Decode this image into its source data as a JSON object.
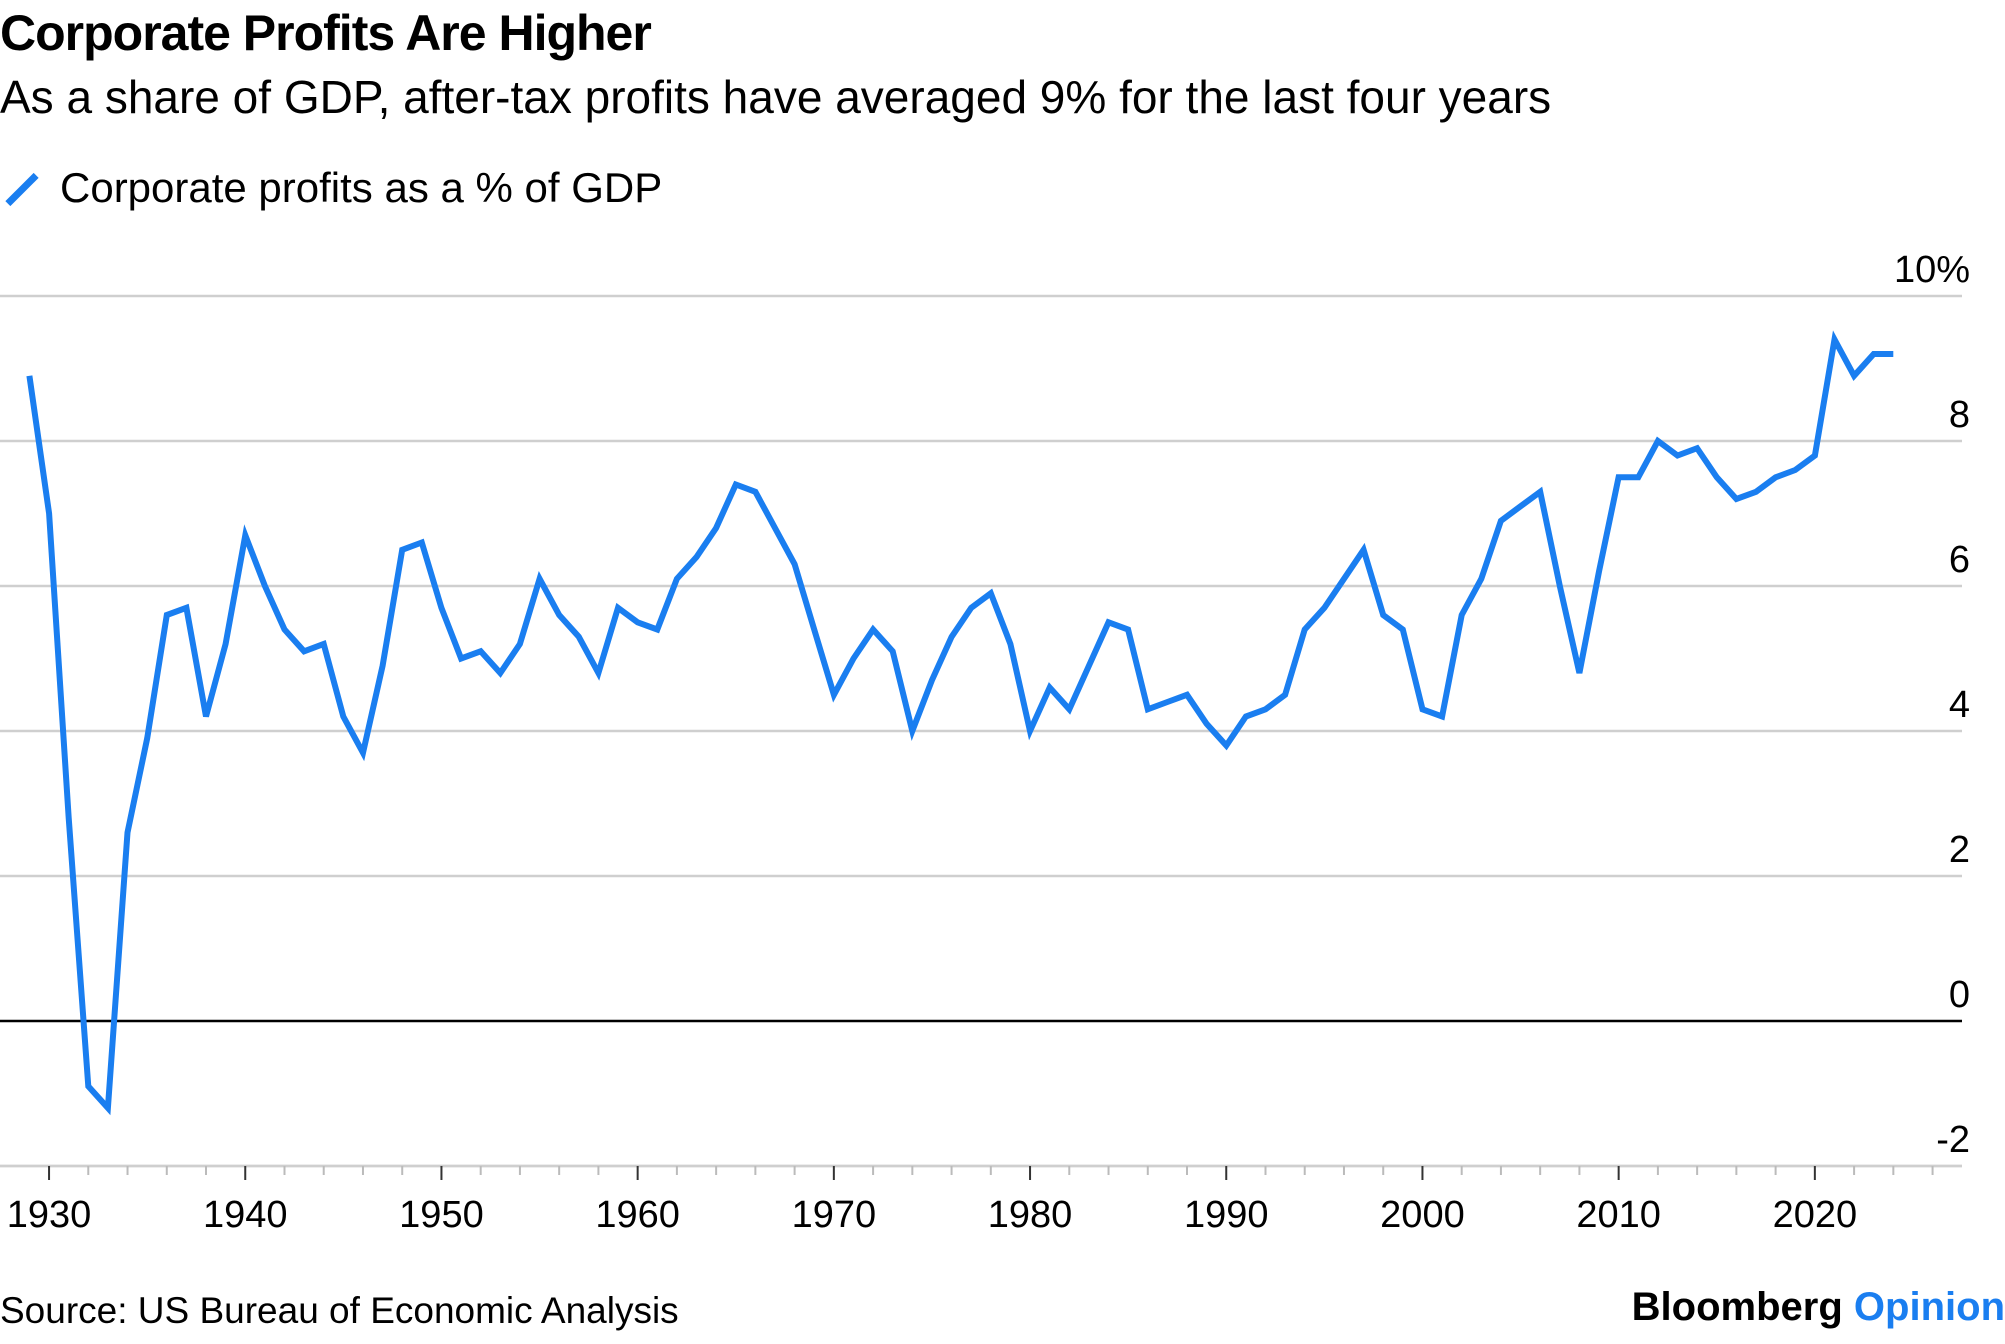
{
  "chart_data": {
    "type": "line",
    "title": "Corporate Profits Are Higher",
    "subtitle": "As a share of GDP, after-tax profits have averaged 9% for the last four years",
    "series": [
      {
        "name": "Corporate profits as a % of GDP",
        "color": "#1a7ef0",
        "x": [
          1929,
          1930,
          1931,
          1932,
          1933,
          1934,
          1935,
          1936,
          1937,
          1938,
          1939,
          1940,
          1941,
          1942,
          1943,
          1944,
          1945,
          1946,
          1947,
          1948,
          1949,
          1950,
          1951,
          1952,
          1953,
          1954,
          1955,
          1956,
          1957,
          1958,
          1959,
          1960,
          1961,
          1962,
          1963,
          1964,
          1965,
          1966,
          1967,
          1968,
          1969,
          1970,
          1971,
          1972,
          1973,
          1974,
          1975,
          1976,
          1977,
          1978,
          1979,
          1980,
          1981,
          1982,
          1983,
          1984,
          1985,
          1986,
          1987,
          1988,
          1989,
          1990,
          1991,
          1992,
          1993,
          1994,
          1995,
          1996,
          1997,
          1998,
          1999,
          2000,
          2001,
          2002,
          2003,
          2004,
          2005,
          2006,
          2007,
          2008,
          2009,
          2010,
          2011,
          2012,
          2013,
          2014,
          2015,
          2016,
          2017,
          2018,
          2019,
          2020,
          2021,
          2022,
          2023,
          2024
        ],
        "values": [
          8.9,
          7.0,
          2.8,
          -0.9,
          -1.2,
          2.6,
          3.9,
          5.6,
          5.7,
          4.2,
          5.2,
          6.7,
          6.0,
          5.4,
          5.1,
          5.2,
          4.2,
          3.7,
          4.9,
          6.5,
          6.6,
          5.7,
          5.0,
          5.1,
          4.8,
          5.2,
          6.1,
          5.6,
          5.3,
          4.8,
          5.7,
          5.5,
          5.4,
          6.1,
          6.4,
          6.8,
          7.4,
          7.3,
          6.8,
          6.3,
          5.4,
          4.5,
          5.0,
          5.4,
          5.1,
          4.0,
          4.7,
          5.3,
          5.7,
          5.9,
          5.2,
          4.0,
          4.6,
          4.3,
          4.9,
          5.5,
          5.4,
          4.3,
          4.4,
          4.5,
          4.1,
          3.8,
          4.2,
          4.3,
          4.5,
          5.4,
          5.7,
          6.1,
          6.5,
          5.6,
          5.4,
          4.3,
          4.2,
          5.6,
          6.1,
          6.9,
          7.1,
          7.3,
          6.0,
          4.8,
          6.2,
          7.5,
          7.5,
          8.0,
          7.8,
          7.9,
          7.5,
          7.2,
          7.3,
          7.5,
          7.6,
          7.8,
          9.4,
          8.9,
          9.2,
          9.2
        ]
      }
    ],
    "xlim": [
      1927.5,
      2027.5
    ],
    "ylim": [
      -2,
      10
    ],
    "x_ticks": [
      1930,
      1940,
      1950,
      1960,
      1970,
      1980,
      1990,
      2000,
      2010,
      2020
    ],
    "x_tick_labels": [
      "1930",
      "1940",
      "1950",
      "1960",
      "1970",
      "1980",
      "1990",
      "2000",
      "2010",
      "2020"
    ],
    "y_ticks": [
      -2,
      0,
      2,
      4,
      6,
      8,
      10
    ],
    "y_tick_labels": [
      "-2",
      "0",
      "2",
      "4",
      "6",
      "8",
      "10%"
    ],
    "grid": true,
    "legend_position": "top-left",
    "xlabel": "",
    "ylabel": ""
  },
  "legend": {
    "label": "Corporate profits as a % of GDP"
  },
  "footer": {
    "source": "Source: US Bureau of Economic Analysis",
    "brand_main": "Bloomberg",
    "brand_accent": "Opinion"
  }
}
